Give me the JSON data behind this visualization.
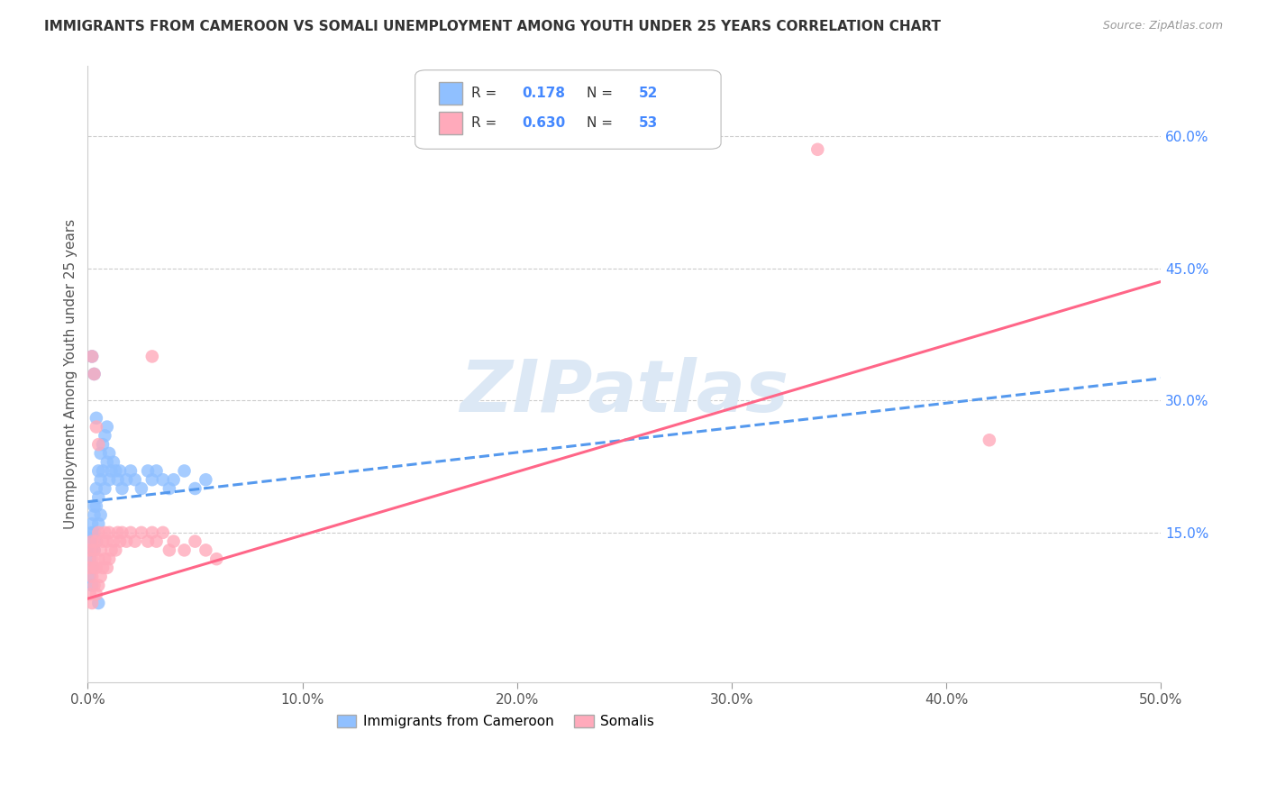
{
  "title": "IMMIGRANTS FROM CAMEROON VS SOMALI UNEMPLOYMENT AMONG YOUTH UNDER 25 YEARS CORRELATION CHART",
  "source": "Source: ZipAtlas.com",
  "ylabel": "Unemployment Among Youth under 25 years",
  "xlim": [
    0.0,
    0.5
  ],
  "ylim": [
    -0.02,
    0.68
  ],
  "xticks": [
    0.0,
    0.1,
    0.2,
    0.3,
    0.4,
    0.5
  ],
  "xtick_labels": [
    "0.0%",
    "10.0%",
    "20.0%",
    "30.0%",
    "40.0%",
    "50.0%"
  ],
  "yticks_right": [
    0.15,
    0.3,
    0.45,
    0.6
  ],
  "ytick_labels_right": [
    "15.0%",
    "30.0%",
    "45.0%",
    "60.0%"
  ],
  "legend_R1_val": "0.178",
  "legend_N1_val": "52",
  "legend_R2_val": "0.630",
  "legend_N2_val": "53",
  "color_blue": "#90c0ff",
  "color_pink": "#ffaabb",
  "color_blue_line": "#5599ee",
  "color_pink_line": "#ff6688",
  "color_title": "#333333",
  "color_axis_right": "#4488ff",
  "watermark_text": "ZIPatlas",
  "watermark_color": "#dce8f5",
  "series1_label": "Immigrants from Cameroon",
  "series2_label": "Somalis",
  "series1_R": 0.178,
  "series2_R": 0.63,
  "cam_x": [
    0.001,
    0.001,
    0.001,
    0.002,
    0.002,
    0.002,
    0.002,
    0.002,
    0.003,
    0.003,
    0.003,
    0.003,
    0.004,
    0.004,
    0.004,
    0.005,
    0.005,
    0.005,
    0.006,
    0.006,
    0.006,
    0.007,
    0.007,
    0.008,
    0.008,
    0.009,
    0.009,
    0.01,
    0.01,
    0.011,
    0.012,
    0.013,
    0.014,
    0.015,
    0.016,
    0.018,
    0.02,
    0.022,
    0.025,
    0.028,
    0.03,
    0.032,
    0.035,
    0.038,
    0.04,
    0.045,
    0.05,
    0.055,
    0.002,
    0.003,
    0.004,
    0.005
  ],
  "cam_y": [
    0.14,
    0.12,
    0.1,
    0.16,
    0.15,
    0.13,
    0.11,
    0.09,
    0.18,
    0.17,
    0.15,
    0.13,
    0.2,
    0.18,
    0.14,
    0.22,
    0.19,
    0.16,
    0.24,
    0.21,
    0.17,
    0.25,
    0.22,
    0.26,
    0.2,
    0.27,
    0.23,
    0.24,
    0.21,
    0.22,
    0.23,
    0.22,
    0.21,
    0.22,
    0.2,
    0.21,
    0.22,
    0.21,
    0.2,
    0.22,
    0.21,
    0.22,
    0.21,
    0.2,
    0.21,
    0.22,
    0.2,
    0.21,
    0.35,
    0.33,
    0.28,
    0.07
  ],
  "som_x": [
    0.001,
    0.001,
    0.001,
    0.002,
    0.002,
    0.002,
    0.002,
    0.003,
    0.003,
    0.003,
    0.004,
    0.004,
    0.004,
    0.005,
    0.005,
    0.005,
    0.006,
    0.006,
    0.007,
    0.007,
    0.008,
    0.008,
    0.009,
    0.009,
    0.01,
    0.01,
    0.011,
    0.012,
    0.013,
    0.014,
    0.015,
    0.016,
    0.018,
    0.02,
    0.022,
    0.025,
    0.028,
    0.03,
    0.032,
    0.035,
    0.038,
    0.04,
    0.045,
    0.05,
    0.055,
    0.06,
    0.002,
    0.003,
    0.004,
    0.005,
    0.34,
    0.42,
    0.03
  ],
  "som_y": [
    0.08,
    0.11,
    0.13,
    0.1,
    0.12,
    0.14,
    0.07,
    0.09,
    0.11,
    0.13,
    0.08,
    0.11,
    0.14,
    0.09,
    0.12,
    0.15,
    0.1,
    0.13,
    0.11,
    0.14,
    0.12,
    0.15,
    0.11,
    0.14,
    0.12,
    0.15,
    0.13,
    0.14,
    0.13,
    0.15,
    0.14,
    0.15,
    0.14,
    0.15,
    0.14,
    0.15,
    0.14,
    0.15,
    0.14,
    0.15,
    0.13,
    0.14,
    0.13,
    0.14,
    0.13,
    0.12,
    0.35,
    0.33,
    0.27,
    0.25,
    0.585,
    0.255,
    0.35
  ]
}
